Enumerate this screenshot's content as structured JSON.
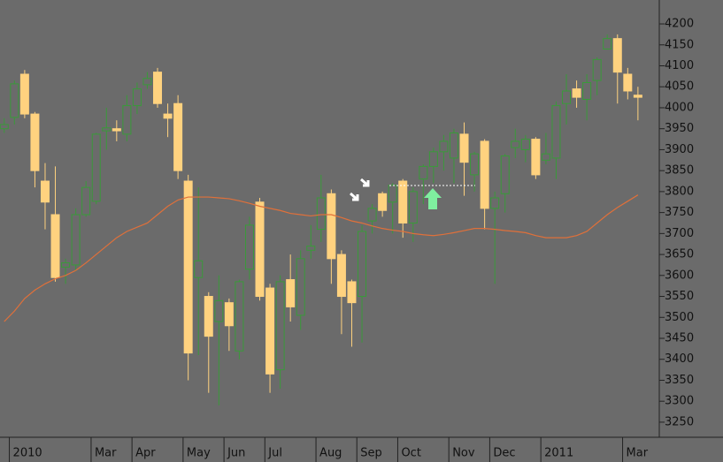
{
  "chart_data": {
    "type": "candlestick",
    "categories": [
      null,
      "2010",
      null,
      null,
      null,
      null,
      null,
      null,
      null,
      "Mar",
      null,
      null,
      null,
      "Apr",
      null,
      null,
      null,
      null,
      "May",
      null,
      null,
      null,
      "Jun",
      null,
      null,
      null,
      "Jul",
      null,
      null,
      null,
      null,
      "Aug",
      null,
      null,
      null,
      "Sep",
      null,
      null,
      null,
      "Oct",
      null,
      null,
      null,
      null,
      "Nov",
      null,
      null,
      null,
      "Dec",
      null,
      null,
      null,
      null,
      "2011",
      null,
      null,
      null,
      null,
      null,
      null,
      null,
      "Mar",
      null
    ],
    "open": [
      3950,
      3977,
      4080,
      3985,
      3825,
      3745,
      3620,
      3625,
      3745,
      3777,
      3945,
      3950,
      3937,
      4005,
      4055,
      4085,
      3985,
      4010,
      3825,
      3595,
      3550,
      3490,
      3535,
      3420,
      3615,
      3775,
      3570,
      3375,
      3590,
      3505,
      3660,
      3710,
      3795,
      3650,
      3585,
      3550,
      3730,
      3795,
      3775,
      3825,
      3725,
      3830,
      3860,
      3895,
      3880,
      3937,
      3840,
      3920,
      3760,
      3795,
      3905,
      3900,
      3925,
      3875,
      3880,
      4010,
      4045,
      4020,
      4065,
      4140,
      4165,
      4080,
      4030
    ],
    "high": [
      3975,
      4065,
      4090,
      3990,
      3868,
      3860,
      3640,
      3760,
      3825,
      3940,
      4000,
      3970,
      4030,
      4060,
      4085,
      4095,
      4010,
      4030,
      3840,
      3810,
      3560,
      3600,
      3545,
      3590,
      3740,
      3785,
      3580,
      3600,
      3650,
      3660,
      3720,
      3840,
      3805,
      3660,
      3590,
      3720,
      3770,
      3800,
      3820,
      3830,
      3810,
      3865,
      3905,
      3935,
      3950,
      3965,
      3895,
      3925,
      3800,
      3890,
      3950,
      3935,
      3930,
      3940,
      4015,
      4080,
      4065,
      4080,
      4120,
      4175,
      4175,
      4095,
      4050
    ],
    "low": [
      3940,
      3960,
      3975,
      3810,
      3710,
      3585,
      3580,
      3610,
      3740,
      3770,
      3900,
      3920,
      3920,
      3985,
      4045,
      4000,
      3930,
      3830,
      3350,
      3410,
      3320,
      3290,
      3420,
      3400,
      3590,
      3540,
      3320,
      3330,
      3490,
      3470,
      3640,
      3680,
      3580,
      3460,
      3430,
      3440,
      3700,
      3740,
      3700,
      3690,
      3680,
      3770,
      3820,
      3850,
      3820,
      3790,
      3800,
      3710,
      3580,
      3750,
      3880,
      3870,
      3830,
      3865,
      3830,
      3960,
      4000,
      3970,
      4030,
      4140,
      4010,
      4020,
      3970
    ],
    "close": [
      3960,
      4057,
      3985,
      3850,
      3775,
      3595,
      3630,
      3745,
      3810,
      3937,
      3952,
      3945,
      4005,
      4045,
      4070,
      4010,
      3975,
      3850,
      3415,
      3635,
      3455,
      3540,
      3480,
      3585,
      3720,
      3550,
      3365,
      3585,
      3525,
      3640,
      3670,
      3785,
      3640,
      3550,
      3535,
      3705,
      3760,
      3755,
      3815,
      3725,
      3800,
      3860,
      3895,
      3920,
      3940,
      3870,
      3890,
      3760,
      3785,
      3885,
      3920,
      3925,
      3840,
      3890,
      4005,
      4040,
      4025,
      4060,
      4115,
      4165,
      4085,
      4040,
      4025
    ],
    "up_color": "#3a9a3a",
    "down_color": "#ffd27f",
    "ma": {
      "color": "#e0703a",
      "values": [
        3490,
        3515,
        3545,
        3565,
        3580,
        3592,
        3600,
        3612,
        3630,
        3650,
        3670,
        3690,
        3705,
        3715,
        3725,
        3745,
        3765,
        3780,
        3787,
        3787,
        3787,
        3785,
        3783,
        3778,
        3772,
        3765,
        3760,
        3755,
        3748,
        3745,
        3742,
        3745,
        3745,
        3738,
        3730,
        3725,
        3718,
        3712,
        3708,
        3705,
        3700,
        3697,
        3695,
        3698,
        3702,
        3707,
        3712,
        3712,
        3710,
        3707,
        3705,
        3702,
        3695,
        3690,
        3690,
        3690,
        3695,
        3705,
        3725,
        3745,
        3762,
        3777,
        3792
      ]
    },
    "ylim": [
      3214,
      4257
    ],
    "yticks": [
      3250,
      3300,
      3350,
      3400,
      3450,
      3500,
      3550,
      3600,
      3650,
      3700,
      3750,
      3800,
      3850,
      3900,
      3950,
      4000,
      4050,
      4100,
      4150,
      4200
    ]
  }
}
